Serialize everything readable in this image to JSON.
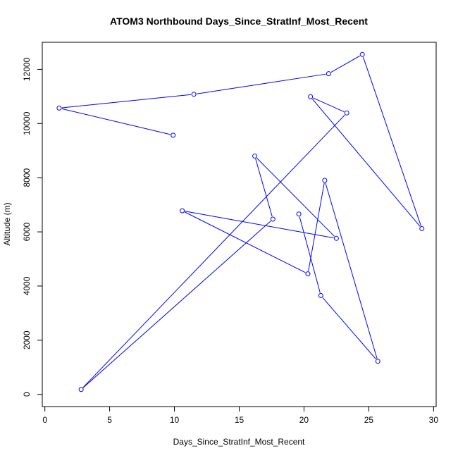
{
  "chart_data": {
    "type": "line",
    "title": "ATOM3 Northbound Days_Since_StratInf_Most_Recent",
    "xlabel": "Days_Since_StratInf_Most_Recent",
    "ylabel": "Altitude (m)",
    "xlim": [
      0,
      30
    ],
    "ylim": [
      0,
      12500
    ],
    "x_ticks": [
      0,
      5,
      10,
      15,
      20,
      25,
      30
    ],
    "y_ticks": [
      0,
      2000,
      4000,
      6000,
      8000,
      10000,
      12000
    ],
    "grid": false,
    "legend": "none",
    "series": [
      {
        "color": "#0000ff",
        "marker": "open-circle",
        "points": [
          [
            9.9,
            9570
          ],
          [
            1.1,
            10570
          ],
          [
            11.5,
            11080
          ],
          [
            21.9,
            11840
          ],
          [
            24.5,
            12550
          ],
          [
            29.1,
            6120
          ],
          [
            20.5,
            10990
          ],
          [
            23.3,
            10390
          ],
          [
            2.8,
            180
          ],
          [
            17.6,
            6470
          ],
          [
            16.2,
            8800
          ],
          [
            22.5,
            5760
          ],
          [
            10.6,
            6780
          ],
          [
            20.3,
            4450
          ],
          [
            21.6,
            7900
          ],
          [
            25.7,
            1220
          ],
          [
            21.3,
            3650
          ],
          [
            19.6,
            6660
          ]
        ]
      }
    ]
  }
}
